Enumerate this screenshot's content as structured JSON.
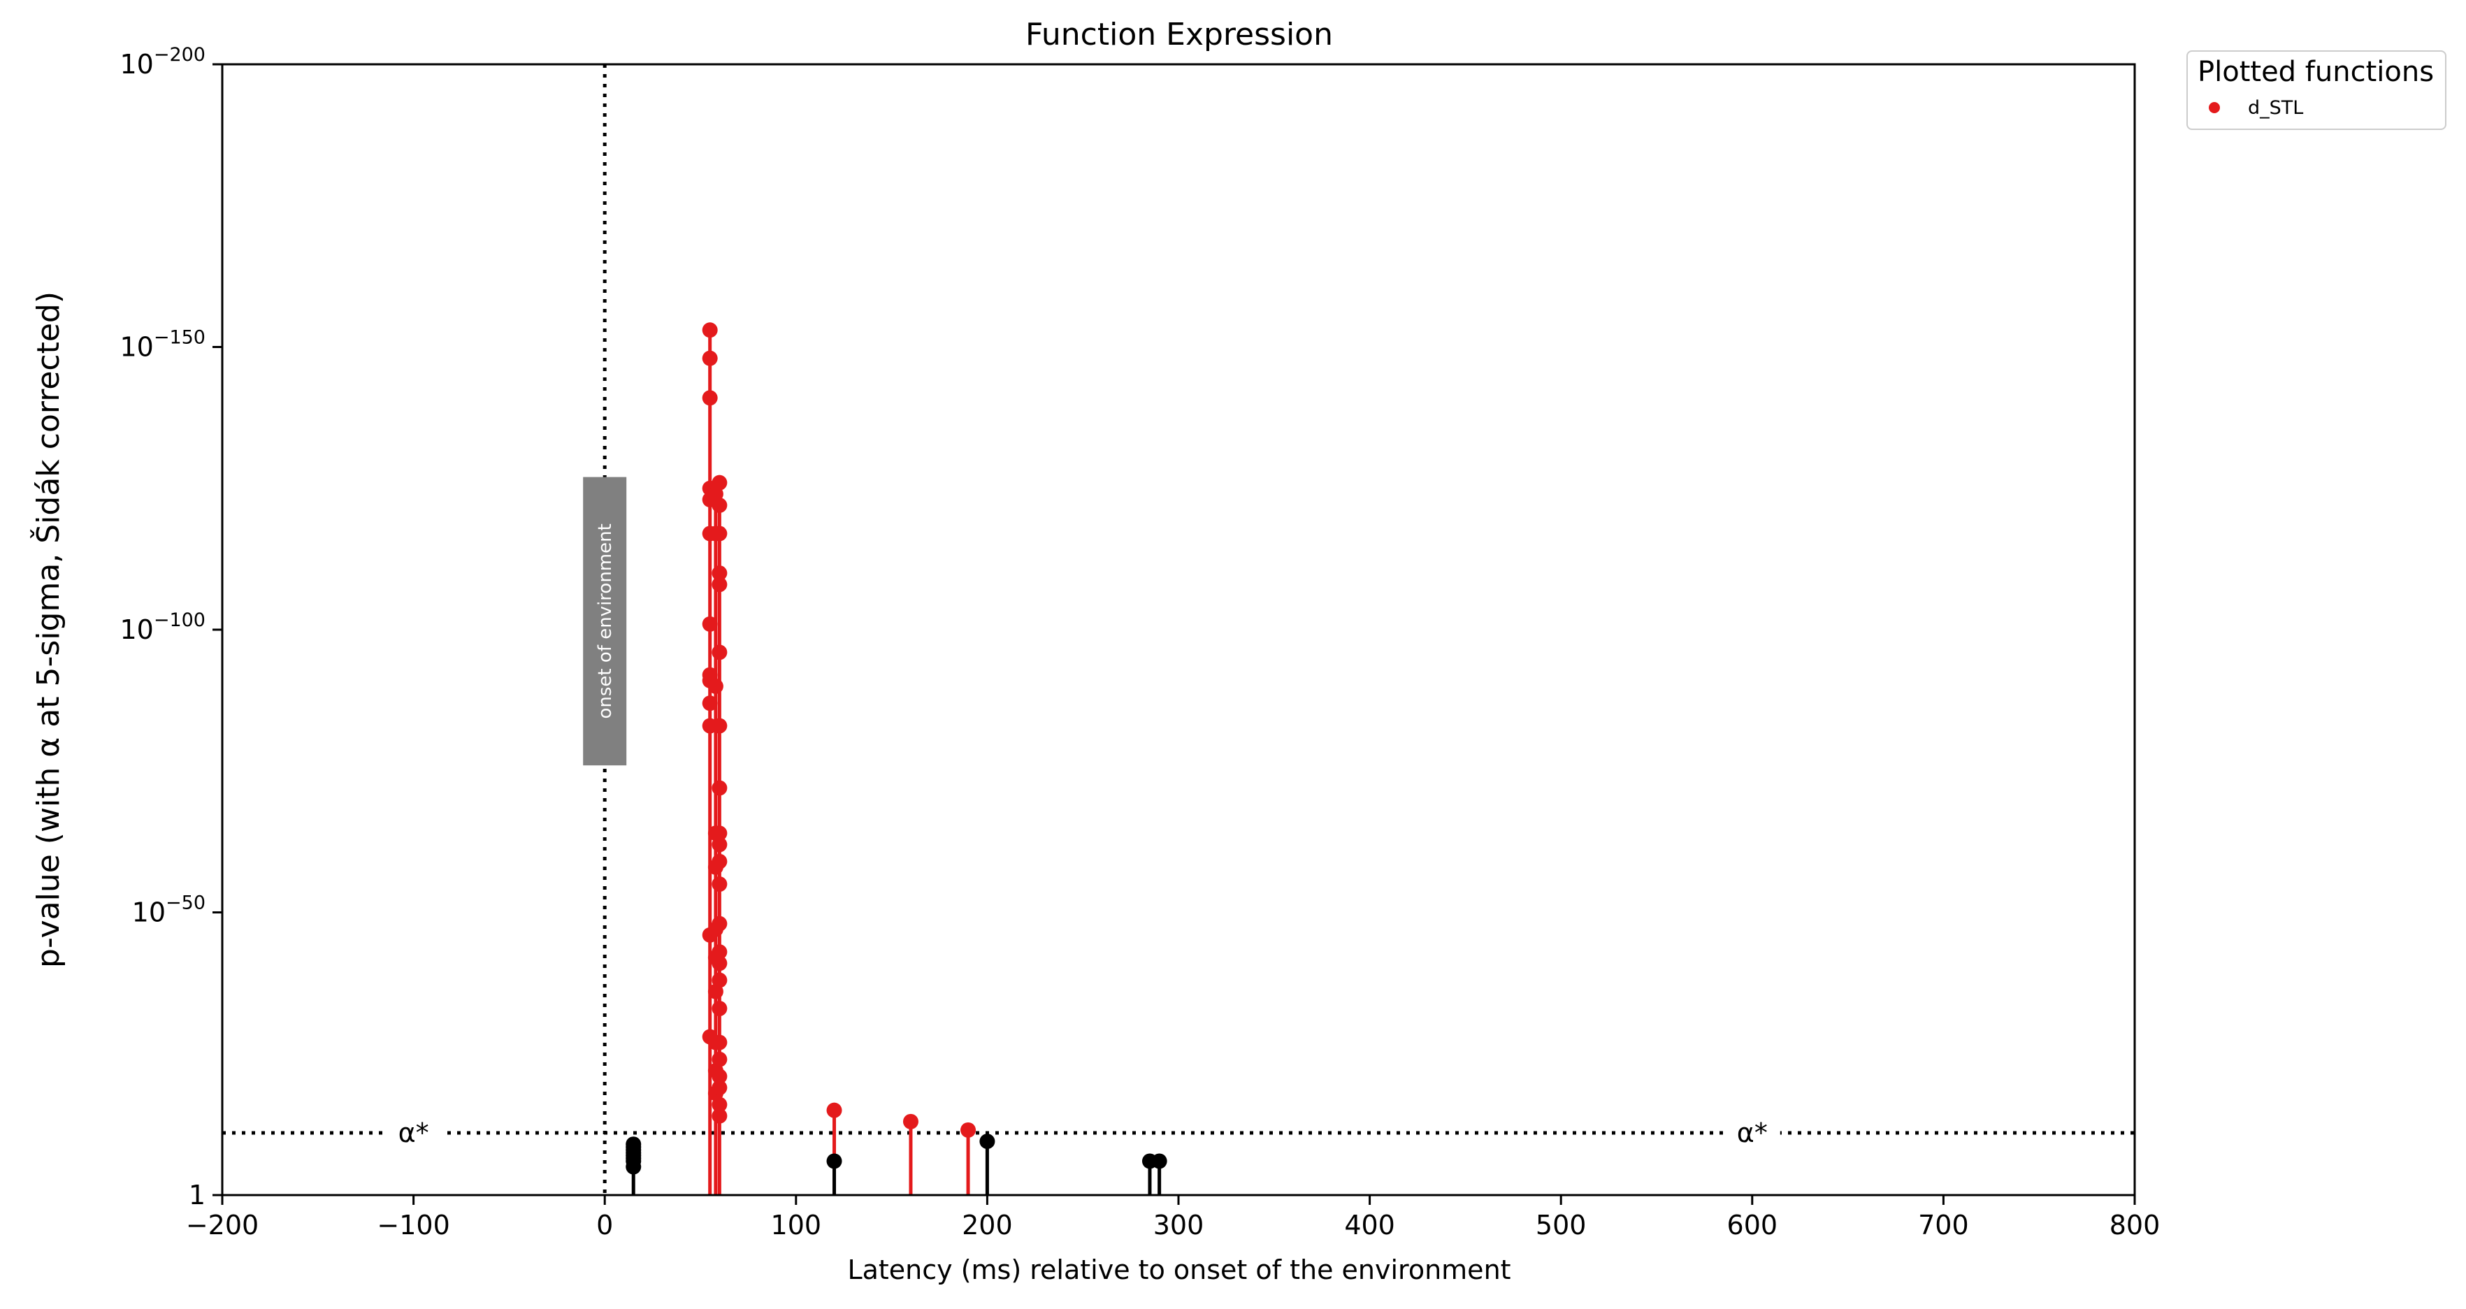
{
  "chart_data": {
    "type": "scatter",
    "title": "Function Expression",
    "xlabel": "Latency (ms) relative to onset of the environment",
    "ylabel": "p-value (with α at 5-sigma, Šidák corrected)",
    "xlim": [
      -200,
      800
    ],
    "ylim_exponent": [
      0,
      -200
    ],
    "y_scale": "log",
    "x_ticks": [
      -200,
      -100,
      0,
      100,
      200,
      300,
      400,
      500,
      600,
      700,
      800
    ],
    "x_tick_labels": [
      "−200",
      "−100",
      "0",
      "100",
      "200",
      "300",
      "400",
      "500",
      "600",
      "700",
      "800"
    ],
    "y_ticks": [
      {
        "exp": 0,
        "base": "1",
        "sup": ""
      },
      {
        "exp": -50,
        "base": "10",
        "sup": "−50"
      },
      {
        "exp": -100,
        "base": "10",
        "sup": "−100"
      },
      {
        "exp": -150,
        "base": "10",
        "sup": "−150"
      },
      {
        "exp": -200,
        "base": "10",
        "sup": "−200"
      }
    ],
    "alpha_line_exponent": -11,
    "alpha_label": "α*",
    "alpha_label_x": [
      -100,
      600
    ],
    "onset_line_x": 0,
    "onset_label": "onset of environment",
    "grid": false,
    "legend": {
      "title": "Plotted functions",
      "placement": "right-outside-top",
      "entries": [
        {
          "name": "d_STL",
          "color": "#e41a1c"
        }
      ]
    },
    "series": [
      {
        "name": "d_STL",
        "color": "#e41a1c",
        "significant": true,
        "points": [
          {
            "x": 55,
            "y_exp": -153
          },
          {
            "x": 55,
            "y_exp": -148
          },
          {
            "x": 55,
            "y_exp": -141
          },
          {
            "x": 55,
            "y_exp": -125
          },
          {
            "x": 55,
            "y_exp": -123
          },
          {
            "x": 55,
            "y_exp": -117
          },
          {
            "x": 55,
            "y_exp": -101
          },
          {
            "x": 55,
            "y_exp": -92
          },
          {
            "x": 55,
            "y_exp": -91
          },
          {
            "x": 55,
            "y_exp": -87
          },
          {
            "x": 55,
            "y_exp": -83
          },
          {
            "x": 55,
            "y_exp": -46
          },
          {
            "x": 55,
            "y_exp": -28
          },
          {
            "x": 58,
            "y_exp": -124
          },
          {
            "x": 58,
            "y_exp": -117
          },
          {
            "x": 58,
            "y_exp": -90
          },
          {
            "x": 58,
            "y_exp": -64
          },
          {
            "x": 58,
            "y_exp": -58
          },
          {
            "x": 58,
            "y_exp": -47
          },
          {
            "x": 58,
            "y_exp": -42
          },
          {
            "x": 58,
            "y_exp": -36
          },
          {
            "x": 58,
            "y_exp": -27
          },
          {
            "x": 58,
            "y_exp": -22
          },
          {
            "x": 58,
            "y_exp": -18
          },
          {
            "x": 60,
            "y_exp": -126
          },
          {
            "x": 60,
            "y_exp": -122
          },
          {
            "x": 60,
            "y_exp": -117
          },
          {
            "x": 60,
            "y_exp": -110
          },
          {
            "x": 60,
            "y_exp": -108
          },
          {
            "x": 60,
            "y_exp": -96
          },
          {
            "x": 60,
            "y_exp": -83
          },
          {
            "x": 60,
            "y_exp": -72
          },
          {
            "x": 60,
            "y_exp": -64
          },
          {
            "x": 60,
            "y_exp": -62
          },
          {
            "x": 60,
            "y_exp": -59
          },
          {
            "x": 60,
            "y_exp": -55
          },
          {
            "x": 60,
            "y_exp": -48
          },
          {
            "x": 60,
            "y_exp": -43
          },
          {
            "x": 60,
            "y_exp": -41
          },
          {
            "x": 60,
            "y_exp": -38
          },
          {
            "x": 60,
            "y_exp": -33
          },
          {
            "x": 60,
            "y_exp": -27
          },
          {
            "x": 60,
            "y_exp": -24
          },
          {
            "x": 60,
            "y_exp": -21
          },
          {
            "x": 60,
            "y_exp": -19
          },
          {
            "x": 60,
            "y_exp": -16
          },
          {
            "x": 60,
            "y_exp": -14
          },
          {
            "x": 120,
            "y_exp": -15
          },
          {
            "x": 160,
            "y_exp": -13
          },
          {
            "x": 190,
            "y_exp": -11.5
          }
        ]
      },
      {
        "name": "d_STL",
        "color": "#000000",
        "significant": false,
        "points": [
          {
            "x": 15,
            "y_exp": -9
          },
          {
            "x": 15,
            "y_exp": -8.5
          },
          {
            "x": 15,
            "y_exp": -8
          },
          {
            "x": 15,
            "y_exp": -7.5
          },
          {
            "x": 15,
            "y_exp": -7
          },
          {
            "x": 15,
            "y_exp": -6.5
          },
          {
            "x": 15,
            "y_exp": -6
          },
          {
            "x": 15,
            "y_exp": -5
          },
          {
            "x": 120,
            "y_exp": -6
          },
          {
            "x": 200,
            "y_exp": -9.5
          },
          {
            "x": 285,
            "y_exp": -6
          },
          {
            "x": 290,
            "y_exp": -6
          }
        ]
      }
    ]
  }
}
